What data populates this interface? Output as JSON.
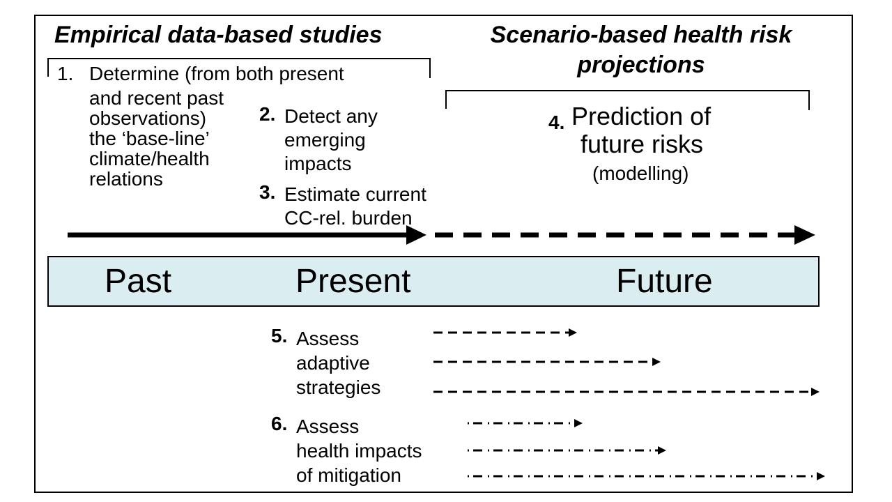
{
  "headings": {
    "empirical": "Empirical data-based studies",
    "scenario_line1": "Scenario-based health risk",
    "scenario_line2": "projections"
  },
  "steps": {
    "s1": {
      "num": "1.",
      "lines": "Determine (from both present"
    },
    "s1_cont": {
      "lines": "and recent past\nobservations)\nthe ‘base-line’\nclimate/health\nrelations"
    },
    "s2": {
      "num": "2.",
      "lines": "Detect any\nemerging\nimpacts"
    },
    "s3": {
      "num": "3.",
      "lines": "Estimate current\nCC-rel. burden"
    },
    "s4": {
      "num": "4.",
      "line1": "Prediction of",
      "line2": "future risks",
      "line3": "(modelling)"
    },
    "s5": {
      "num": "5.",
      "lines": "Assess\nadaptive\nstrategies"
    },
    "s6": {
      "num": "6.",
      "lines": "Assess\nhealth impacts\nof mitigation"
    }
  },
  "timeline": {
    "past": "Past",
    "present": "Present",
    "future": "Future",
    "fill_color": "#daeef1"
  }
}
